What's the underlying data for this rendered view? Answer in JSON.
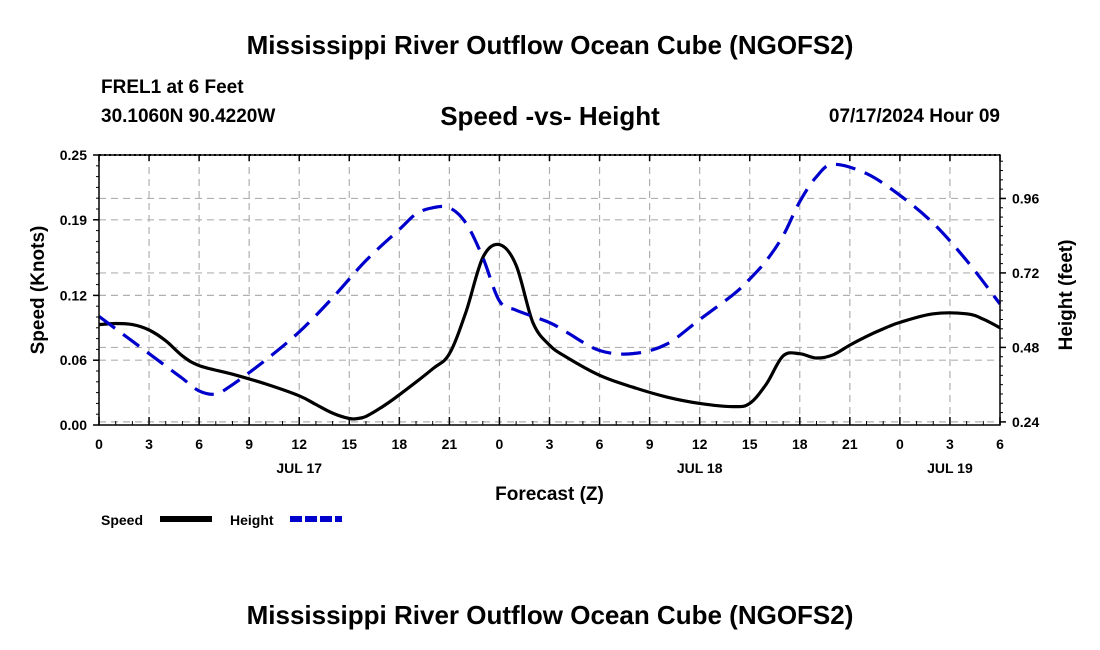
{
  "header": {
    "title": "Mississippi River Outflow Ocean Cube (NGOFS2)",
    "station": "FREL1 at 6 Feet",
    "coords": "30.1060N  90.4220W",
    "subtitle": "Speed -vs- Height",
    "datetime": "07/17/2024 Hour 09",
    "footer_title": "Mississippi River Outflow Ocean Cube (NGOFS2)"
  },
  "colors": {
    "speed": "#000000",
    "height": "#0000cc",
    "grid": "#b0b0b0"
  },
  "chart_data": {
    "type": "line",
    "title": "Speed -vs- Height",
    "xlabel": "Forecast (Z)",
    "ylabel": "Speed (Knots)",
    "y2label": "Height (feet)",
    "xlim": [
      0,
      54
    ],
    "ylim": [
      0,
      0.25
    ],
    "y2lim": [
      0.23,
      1.1
    ],
    "x_ticks": [
      0,
      3,
      6,
      9,
      12,
      15,
      18,
      21,
      24,
      27,
      30,
      33,
      36,
      39,
      42,
      45,
      48,
      51,
      54
    ],
    "x_tick_labels": [
      "0",
      "3",
      "6",
      "9",
      "12",
      "15",
      "18",
      "21",
      "0",
      "3",
      "6",
      "9",
      "12",
      "15",
      "18",
      "21",
      "0",
      "3",
      "6"
    ],
    "day_labels": [
      {
        "x": 12,
        "label": "JUL 17"
      },
      {
        "x": 36,
        "label": "JUL 18"
      },
      {
        "x": 51,
        "label": "JUL 19"
      }
    ],
    "y_ticks": [
      0.0,
      0.06,
      0.12,
      0.19,
      0.25
    ],
    "y_tick_labels": [
      "0.00",
      "0.06",
      "0.12",
      "0.19",
      "0.25"
    ],
    "y2_ticks": [
      0.24,
      0.48,
      0.72,
      0.96
    ],
    "y2_tick_labels": [
      "0.24",
      "0.48",
      "0.72",
      "0.96"
    ],
    "series": [
      {
        "name": "Speed",
        "axis": "left",
        "style": "solid",
        "x": [
          0,
          1,
          2,
          3,
          4,
          5,
          6,
          8,
          10,
          12,
          13,
          14,
          15,
          15.5,
          16,
          17,
          18,
          20,
          21,
          22,
          23,
          24,
          25,
          26,
          27,
          28,
          30,
          32,
          34,
          36,
          38,
          39,
          40,
          41,
          42,
          43,
          44,
          45,
          46,
          47,
          48,
          50,
          52,
          53,
          54
        ],
        "values": [
          0.093,
          0.094,
          0.093,
          0.088,
          0.078,
          0.064,
          0.055,
          0.047,
          0.038,
          0.027,
          0.019,
          0.011,
          0.006,
          0.006,
          0.008,
          0.017,
          0.028,
          0.052,
          0.066,
          0.105,
          0.155,
          0.167,
          0.148,
          0.095,
          0.074,
          0.063,
          0.046,
          0.035,
          0.026,
          0.02,
          0.017,
          0.02,
          0.038,
          0.064,
          0.066,
          0.062,
          0.065,
          0.074,
          0.082,
          0.089,
          0.095,
          0.103,
          0.103,
          0.098,
          0.09
        ]
      },
      {
        "name": "Height",
        "axis": "right",
        "style": "dashed",
        "x": [
          0,
          2,
          4,
          5,
          6,
          7,
          8,
          10,
          12,
          14,
          16,
          18,
          19,
          20,
          21,
          22,
          23,
          24,
          25,
          27,
          28,
          30,
          32,
          34,
          36,
          38,
          39,
          40,
          41,
          42,
          43,
          44,
          46,
          48,
          50,
          52,
          54
        ],
        "values": [
          0.58,
          0.5,
          0.42,
          0.38,
          0.34,
          0.33,
          0.36,
          0.44,
          0.53,
          0.64,
          0.76,
          0.86,
          0.91,
          0.93,
          0.93,
          0.88,
          0.77,
          0.63,
          0.6,
          0.56,
          0.53,
          0.47,
          0.46,
          0.49,
          0.57,
          0.65,
          0.7,
          0.76,
          0.84,
          0.95,
          1.03,
          1.07,
          1.04,
          0.97,
          0.88,
          0.76,
          0.62
        ]
      }
    ],
    "legend": [
      {
        "label": "Speed",
        "series": "Speed"
      },
      {
        "label": "Height",
        "series": "Height"
      }
    ]
  }
}
